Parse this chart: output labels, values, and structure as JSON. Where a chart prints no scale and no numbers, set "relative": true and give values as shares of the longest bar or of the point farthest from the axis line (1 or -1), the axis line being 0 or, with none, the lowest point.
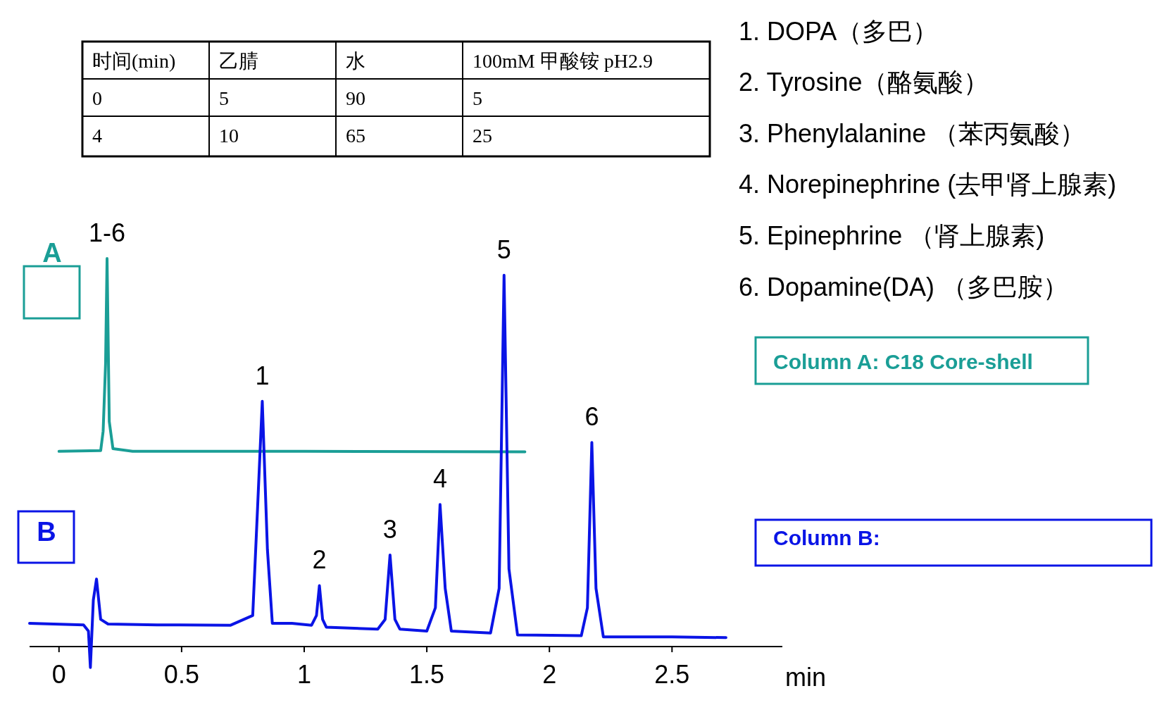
{
  "chart_data": {
    "type": "line",
    "relative": true,
    "xlabel": "min",
    "xlim": [
      -0.12,
      2.95
    ],
    "xticks": [
      0,
      0.5,
      1,
      1.5,
      2,
      2.5
    ],
    "series": [
      {
        "color": "#1a9e96",
        "x": [
          0,
          0.17,
          0.18,
          0.19,
          0.196,
          0.205,
          0.22,
          0.3,
          1.0,
          1.9
        ],
        "values": [
          0.503,
          0.505,
          0.555,
          0.73,
          1.0,
          0.58,
          0.51,
          0.503,
          0.503,
          0.502
        ]
      },
      {
        "color": "#0a14e6",
        "x": [
          -0.12,
          0.1,
          0.12,
          0.128,
          0.14,
          0.153,
          0.17,
          0.2,
          0.4,
          0.7,
          0.79,
          0.81,
          0.829,
          0.85,
          0.87,
          0.95,
          1.03,
          1.05,
          1.062,
          1.075,
          1.09,
          1.3,
          1.33,
          1.35,
          1.37,
          1.39,
          1.5,
          1.535,
          1.554,
          1.575,
          1.6,
          1.76,
          1.795,
          1.815,
          1.835,
          1.87,
          2.13,
          2.155,
          2.173,
          2.19,
          2.22,
          2.5,
          2.72
        ],
        "values": [
          0.06,
          0.056,
          0.04,
          -0.054,
          0.12,
          0.174,
          0.07,
          0.058,
          0.056,
          0.055,
          0.08,
          0.36,
          0.632,
          0.25,
          0.06,
          0.06,
          0.055,
          0.08,
          0.157,
          0.07,
          0.05,
          0.045,
          0.07,
          0.236,
          0.07,
          0.045,
          0.04,
          0.1,
          0.366,
          0.15,
          0.04,
          0.035,
          0.15,
          0.957,
          0.2,
          0.03,
          0.028,
          0.1,
          0.526,
          0.15,
          0.025,
          0.025,
          0.023
        ]
      }
    ],
    "annotations": [
      "时间(min)",
      "乙腈",
      "水",
      "100mM 甲酸铵 pH2.9",
      "0",
      "5",
      "90",
      "5",
      "4",
      "10",
      "65",
      "25",
      "1. DOPA（多巴）",
      "2. Tyrosine（酪氨酸）",
      "3. Phenylalanine （苯丙氨酸）",
      "4. Norepinephrine (去甲肾上腺素)",
      "5. Epinephrine （肾上腺素)",
      "6. Dopamine(DA) （多巴胺）",
      "A",
      "B",
      "Column A: C18 Core-shell",
      "Column B:",
      {
        "text": "1-6",
        "x": 0.196,
        "y": 1.0
      },
      {
        "text": "1",
        "x": 0.829,
        "y": 0.632
      },
      {
        "text": "2",
        "x": 1.062,
        "y": 0.157
      },
      {
        "text": "3",
        "x": 1.35,
        "y": 0.236
      },
      {
        "text": "4",
        "x": 1.554,
        "y": 0.366
      },
      {
        "text": "5",
        "x": 1.815,
        "y": 0.957
      },
      {
        "text": "6",
        "x": 2.173,
        "y": 0.526
      }
    ]
  }
}
